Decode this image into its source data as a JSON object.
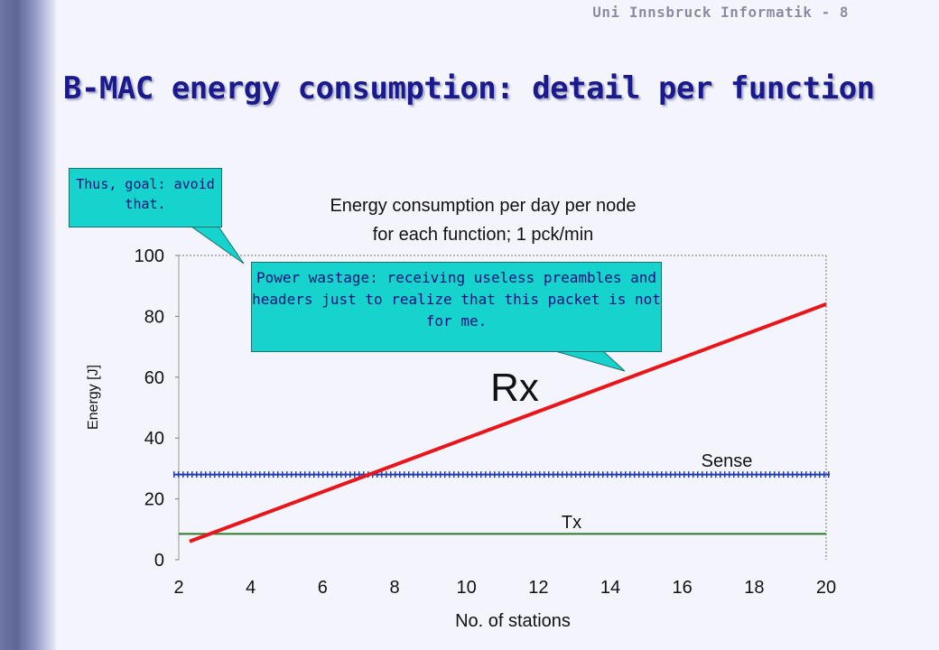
{
  "slide": {
    "header_note": "Uni Innsbruck Informatik - 8",
    "title": "B-MAC energy consumption: detail per function"
  },
  "callouts": {
    "goal": "Thus, goal: avoid that.",
    "power_wastage": "Power wastage: receiving useless preambles and headers just to realize that this packet is not for me."
  },
  "colors": {
    "title": "#1a1a8c",
    "callout_fill": "#17d3cd",
    "rx_line": "#e8161b",
    "sense_line": "#1f3cb0",
    "tx_line": "#2a7a2a"
  },
  "chart_data": {
    "type": "line",
    "title_lines": [
      "Energy consumption per day  per node",
      "for each function; 1 pck/min"
    ],
    "xlabel": "No. of stations",
    "ylabel": "Energy [J]",
    "xlim": [
      2,
      20
    ],
    "ylim": [
      0,
      100
    ],
    "x_ticks": [
      2,
      4,
      6,
      8,
      10,
      12,
      14,
      16,
      18,
      20
    ],
    "y_ticks": [
      0,
      20,
      40,
      60,
      80,
      100
    ],
    "grid": false,
    "series": [
      {
        "name": "Rx",
        "x": [
          2.3,
          20
        ],
        "y": [
          6,
          84
        ],
        "color": "#e8161b",
        "style": "solid"
      },
      {
        "name": "Sense",
        "x": [
          2,
          20
        ],
        "y": [
          28,
          28
        ],
        "color": "#1f3cb0",
        "style": "dotted"
      },
      {
        "name": "Tx",
        "x": [
          2,
          20
        ],
        "y": [
          8.5,
          8.5
        ],
        "color": "#2a7a2a",
        "style": "solid"
      }
    ]
  }
}
